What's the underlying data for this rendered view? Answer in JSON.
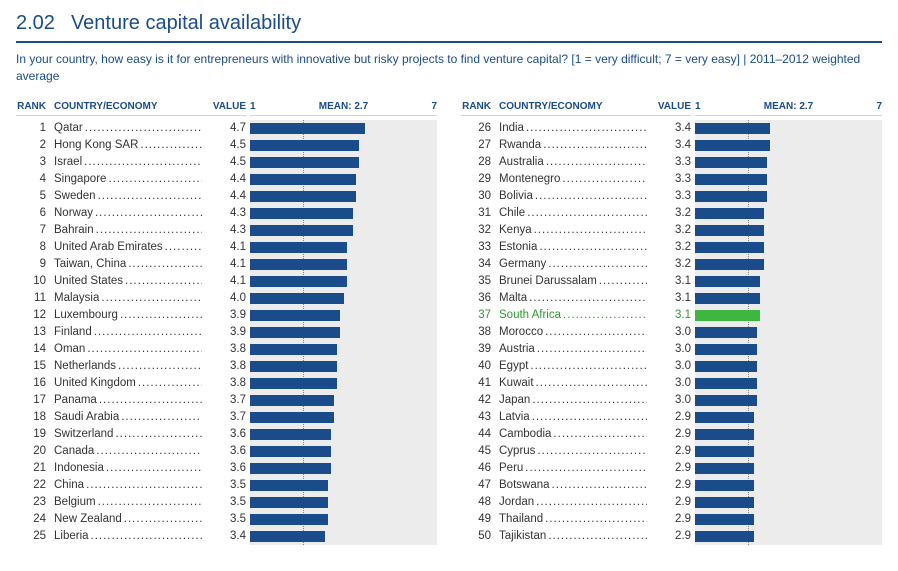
{
  "title_number": "2.02",
  "title_text": "Venture capital availability",
  "subtitle": "In your country, how easy is it for entrepreneurs with innovative but risky projects to find venture capital? [1 = very difficult; 7 = very easy]  |  2011–2012 weighted average",
  "headers": {
    "rank": "RANK",
    "country": "COUNTRY/ECONOMY",
    "value": "VALUE"
  },
  "scale": {
    "min": 1,
    "max": 7,
    "mean": 2.7,
    "mean_label": "MEAN: 2.7",
    "min_label": "1",
    "max_label": "7"
  },
  "colors": {
    "brand": "#1a4c8b",
    "bar": "#1a4c8b",
    "highlight": "#3fb63f",
    "chart_bg": "#ececec"
  },
  "left": [
    {
      "rank": 1,
      "country": "Qatar",
      "value": 4.7
    },
    {
      "rank": 2,
      "country": "Hong Kong SAR",
      "value": 4.5
    },
    {
      "rank": 3,
      "country": "Israel",
      "value": 4.5
    },
    {
      "rank": 4,
      "country": "Singapore",
      "value": 4.4
    },
    {
      "rank": 5,
      "country": "Sweden",
      "value": 4.4
    },
    {
      "rank": 6,
      "country": "Norway",
      "value": 4.3
    },
    {
      "rank": 7,
      "country": "Bahrain",
      "value": 4.3
    },
    {
      "rank": 8,
      "country": "United Arab Emirates",
      "value": 4.1
    },
    {
      "rank": 9,
      "country": "Taiwan, China",
      "value": 4.1
    },
    {
      "rank": 10,
      "country": "United States",
      "value": 4.1
    },
    {
      "rank": 11,
      "country": "Malaysia",
      "value": 4.0
    },
    {
      "rank": 12,
      "country": "Luxembourg",
      "value": 3.9
    },
    {
      "rank": 13,
      "country": "Finland",
      "value": 3.9
    },
    {
      "rank": 14,
      "country": "Oman",
      "value": 3.8
    },
    {
      "rank": 15,
      "country": "Netherlands",
      "value": 3.8
    },
    {
      "rank": 16,
      "country": "United Kingdom",
      "value": 3.8
    },
    {
      "rank": 17,
      "country": "Panama",
      "value": 3.7
    },
    {
      "rank": 18,
      "country": "Saudi Arabia",
      "value": 3.7
    },
    {
      "rank": 19,
      "country": "Switzerland",
      "value": 3.6
    },
    {
      "rank": 20,
      "country": "Canada",
      "value": 3.6
    },
    {
      "rank": 21,
      "country": "Indonesia",
      "value": 3.6
    },
    {
      "rank": 22,
      "country": "China",
      "value": 3.5
    },
    {
      "rank": 23,
      "country": "Belgium",
      "value": 3.5
    },
    {
      "rank": 24,
      "country": "New Zealand",
      "value": 3.5
    },
    {
      "rank": 25,
      "country": "Liberia",
      "value": 3.4
    }
  ],
  "right": [
    {
      "rank": 26,
      "country": "India",
      "value": 3.4
    },
    {
      "rank": 27,
      "country": "Rwanda",
      "value": 3.4
    },
    {
      "rank": 28,
      "country": "Australia",
      "value": 3.3
    },
    {
      "rank": 29,
      "country": "Montenegro",
      "value": 3.3
    },
    {
      "rank": 30,
      "country": "Bolivia",
      "value": 3.3
    },
    {
      "rank": 31,
      "country": "Chile",
      "value": 3.2
    },
    {
      "rank": 32,
      "country": "Kenya",
      "value": 3.2
    },
    {
      "rank": 33,
      "country": "Estonia",
      "value": 3.2
    },
    {
      "rank": 34,
      "country": "Germany",
      "value": 3.2
    },
    {
      "rank": 35,
      "country": "Brunei Darussalam",
      "value": 3.1
    },
    {
      "rank": 36,
      "country": "Malta",
      "value": 3.1
    },
    {
      "rank": 37,
      "country": "South Africa",
      "value": 3.1,
      "highlight": true
    },
    {
      "rank": 38,
      "country": "Morocco",
      "value": 3.0
    },
    {
      "rank": 39,
      "country": "Austria",
      "value": 3.0
    },
    {
      "rank": 40,
      "country": "Egypt",
      "value": 3.0
    },
    {
      "rank": 41,
      "country": "Kuwait",
      "value": 3.0
    },
    {
      "rank": 42,
      "country": "Japan",
      "value": 3.0
    },
    {
      "rank": 43,
      "country": "Latvia",
      "value": 2.9
    },
    {
      "rank": 44,
      "country": "Cambodia",
      "value": 2.9
    },
    {
      "rank": 45,
      "country": "Cyprus",
      "value": 2.9
    },
    {
      "rank": 46,
      "country": "Peru",
      "value": 2.9
    },
    {
      "rank": 47,
      "country": "Botswana",
      "value": 2.9
    },
    {
      "rank": 48,
      "country": "Jordan",
      "value": 2.9
    },
    {
      "rank": 49,
      "country": "Thailand",
      "value": 2.9
    },
    {
      "rank": 50,
      "country": "Tajikistan",
      "value": 2.9
    }
  ]
}
